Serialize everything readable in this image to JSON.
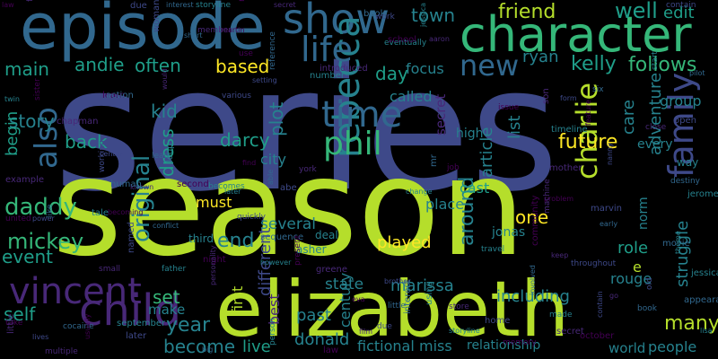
{
  "background": "#000000",
  "palette": {
    "dark_purple": "#440154",
    "purple": "#482878",
    "indigo": "#3e4989",
    "blue": "#31688e",
    "teal": "#26828e",
    "green_teal": "#1f9e89",
    "green": "#35b779",
    "light_green": "#6ece58",
    "yellow_green": "#b5de2b",
    "yellow": "#fde725"
  },
  "words": [
    "series",
    "season",
    "elizabeth",
    "episode",
    "character",
    "show",
    "child",
    "vincent",
    "rebecca",
    "life",
    "time",
    "phil",
    "also",
    "new",
    "family",
    "charlie",
    "daddy",
    "mickey",
    "future",
    "friend",
    "follows",
    "kelly",
    "main",
    "story",
    "end",
    "original",
    "dress",
    "plot",
    "day",
    "based",
    "often",
    "andie",
    "kid",
    "darcy",
    "back",
    "edit",
    "well",
    "town",
    "marissa",
    "including",
    "many",
    "one",
    "year",
    "become",
    "live",
    "donald",
    "past",
    "set",
    "self",
    "role",
    "around",
    "different",
    "played",
    "cast",
    "list",
    "article",
    "care",
    "event",
    "begin",
    "must",
    "several",
    "city",
    "best",
    "first",
    "make",
    "rouge",
    "relationship",
    "fictional",
    "people",
    "world",
    "ryan",
    "focus",
    "called",
    "adventure",
    "every",
    "group",
    "struggle",
    "norm",
    "jonas",
    "e",
    "secret",
    "high",
    "state",
    "miss",
    "way",
    "third",
    "deal",
    "asher",
    "place",
    "century",
    "law",
    "film",
    "due",
    "interest",
    "storyline",
    "memory",
    "secret",
    "contain",
    "book",
    "jessica",
    "use",
    "introduced",
    "setting",
    "reference",
    "number",
    "martin",
    "member",
    "woman",
    "short",
    "eventually",
    "learn",
    "would",
    "various",
    "action",
    "twin",
    "sister",
    "chapman",
    "center",
    "lead",
    "loop",
    "find",
    "york",
    "abe",
    "able",
    "becomes",
    "second",
    "known",
    "working",
    "human",
    "later",
    "issue",
    "son",
    "form",
    "six",
    "timeline",
    "feature",
    "close",
    "open",
    "pilot",
    "start",
    "school",
    "aaron",
    "work",
    "mr",
    "change",
    "job",
    "mother",
    "nanny",
    "destiny",
    "jerome",
    "problem",
    "machine",
    "marvin",
    "early",
    "travel",
    "community",
    "keep",
    "throughout",
    "movie",
    "theme",
    "united",
    "example",
    "power",
    "like",
    "tale",
    "becoming",
    "small",
    "named",
    "conflict",
    "father",
    "night",
    "personality",
    "quickly",
    "sequence",
    "however",
    "present",
    "greene",
    "brother",
    "little",
    "using",
    "eva",
    "store",
    "home",
    "involved",
    "made",
    "october",
    "go",
    "old",
    "appearance",
    "lisa",
    "take",
    "little",
    "lives",
    "cocaine",
    "september",
    "usually",
    "multiple",
    "later",
    "big",
    "person"
  ]
}
